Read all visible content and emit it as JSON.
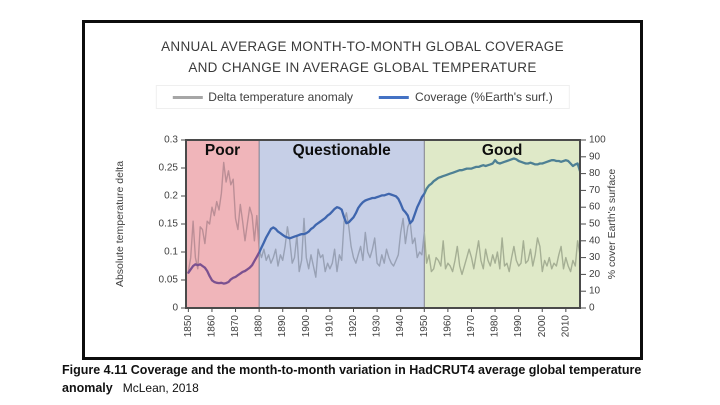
{
  "chart": {
    "title_line1": "ANNUAL AVERAGE MONTH-TO-MONTH GLOBAL COVERAGE",
    "title_line2": "AND CHANGE IN AVERAGE GLOBAL TEMPERATURE",
    "legend": [
      {
        "key": "delta",
        "label": "Delta temperature anomaly",
        "color": "#a6a6a6"
      },
      {
        "key": "coverage",
        "label": "Coverage (%Earth's surf.)",
        "color": "#4472c4"
      }
    ]
  },
  "caption": {
    "line1": "Figure 4.11 Coverage and the month-to-month variation in HadCRUT4 average global temperature",
    "line2_bold": "anomaly",
    "source": "McLean, 2018"
  },
  "chart_data": {
    "type": "line",
    "title": "ANNUAL AVERAGE MONTH-TO-MONTH GLOBAL COVERAGE AND CHANGE IN AVERAGE GLOBAL TEMPERATURE",
    "grid": false,
    "legend_position": "top",
    "x_axis": {
      "min": 1849,
      "max": 2016,
      "ticks": [
        1850,
        1860,
        1870,
        1880,
        1890,
        1900,
        1910,
        1920,
        1930,
        1940,
        1950,
        1960,
        1970,
        1980,
        1990,
        2000,
        2010
      ]
    },
    "left_axis": {
      "label": "Absolute temperature delta",
      "min": 0,
      "max": 0.3,
      "ticks": [
        0,
        0.05,
        0.1,
        0.15,
        0.2,
        0.25,
        0.3
      ]
    },
    "right_axis": {
      "label": "% cover Earth's surface",
      "min": 0,
      "max": 100,
      "ticks": [
        0,
        10,
        20,
        30,
        40,
        50,
        60,
        70,
        80,
        90,
        100
      ]
    },
    "regions": [
      {
        "label": "Poor",
        "from": 1849,
        "to": 1880,
        "bg": "#f0b5ba",
        "tint_coverage": "#7b5190",
        "tint_delta": "#bb8e96"
      },
      {
        "label": "Questionable",
        "from": 1880,
        "to": 1950,
        "bg": "#c6cfe7",
        "tint_coverage": "#3f66ae",
        "tint_delta": "#98a1b5"
      },
      {
        "label": "Good",
        "from": 1950,
        "to": 2016,
        "bg": "#dfe9c8",
        "tint_coverage": "#4e8094",
        "tint_delta": "#a5af94"
      }
    ],
    "x": [
      1850,
      1851,
      1852,
      1853,
      1854,
      1855,
      1856,
      1857,
      1858,
      1859,
      1860,
      1861,
      1862,
      1863,
      1864,
      1865,
      1866,
      1867,
      1868,
      1869,
      1870,
      1871,
      1872,
      1873,
      1874,
      1875,
      1876,
      1877,
      1878,
      1879,
      1880,
      1881,
      1882,
      1883,
      1884,
      1885,
      1886,
      1887,
      1888,
      1889,
      1890,
      1891,
      1892,
      1893,
      1894,
      1895,
      1896,
      1897,
      1898,
      1899,
      1900,
      1901,
      1902,
      1903,
      1904,
      1905,
      1906,
      1907,
      1908,
      1909,
      1910,
      1911,
      1912,
      1913,
      1914,
      1915,
      1916,
      1917,
      1918,
      1919,
      1920,
      1921,
      1922,
      1923,
      1924,
      1925,
      1926,
      1927,
      1928,
      1929,
      1930,
      1931,
      1932,
      1933,
      1934,
      1935,
      1936,
      1937,
      1938,
      1939,
      1940,
      1941,
      1942,
      1943,
      1944,
      1945,
      1946,
      1947,
      1948,
      1949,
      1950,
      1951,
      1952,
      1953,
      1954,
      1955,
      1956,
      1957,
      1958,
      1959,
      1960,
      1961,
      1962,
      1963,
      1964,
      1965,
      1966,
      1967,
      1968,
      1969,
      1970,
      1971,
      1972,
      1973,
      1974,
      1975,
      1976,
      1977,
      1978,
      1979,
      1980,
      1981,
      1982,
      1983,
      1984,
      1985,
      1986,
      1987,
      1988,
      1989,
      1990,
      1991,
      1992,
      1993,
      1994,
      1995,
      1996,
      1997,
      1998,
      1999,
      2000,
      2001,
      2002,
      2003,
      2004,
      2005,
      2006,
      2007,
      2008,
      2009,
      2010,
      2011,
      2012,
      2013,
      2014,
      2015,
      2016
    ],
    "series": [
      {
        "name": "Delta temperature anomaly",
        "axis": "left",
        "base_color": "#a6a6a6",
        "stroke_width": 1.4,
        "values": [
          0.065,
          0.09,
          0.155,
          0.09,
          0.07,
          0.145,
          0.14,
          0.115,
          0.155,
          0.15,
          0.18,
          0.165,
          0.19,
          0.175,
          0.205,
          0.26,
          0.225,
          0.245,
          0.22,
          0.23,
          0.16,
          0.14,
          0.185,
          0.155,
          0.12,
          0.15,
          0.18,
          0.165,
          0.12,
          0.165,
          0.105,
          0.09,
          0.105,
          0.085,
          0.095,
          0.08,
          0.09,
          0.105,
          0.075,
          0.095,
          0.085,
          0.11,
          0.145,
          0.12,
          0.08,
          0.09,
          0.13,
          0.065,
          0.085,
          0.16,
          0.09,
          0.07,
          0.095,
          0.075,
          0.055,
          0.105,
          0.09,
          0.095,
          0.065,
          0.08,
          0.07,
          0.08,
          0.105,
          0.065,
          0.095,
          0.085,
          0.155,
          0.17,
          0.145,
          0.11,
          0.09,
          0.08,
          0.095,
          0.11,
          0.085,
          0.135,
          0.1,
          0.09,
          0.105,
          0.125,
          0.08,
          0.075,
          0.095,
          0.08,
          0.105,
          0.09,
          0.08,
          0.075,
          0.085,
          0.095,
          0.135,
          0.16,
          0.115,
          0.145,
          0.155,
          0.115,
          0.125,
          0.09,
          0.1,
          0.095,
          0.135,
          0.08,
          0.095,
          0.065,
          0.07,
          0.09,
          0.085,
          0.075,
          0.12,
          0.07,
          0.08,
          0.075,
          0.065,
          0.085,
          0.11,
          0.075,
          0.06,
          0.075,
          0.09,
          0.105,
          0.09,
          0.07,
          0.095,
          0.12,
          0.085,
          0.07,
          0.105,
          0.085,
          0.075,
          0.095,
          0.08,
          0.1,
          0.07,
          0.125,
          0.075,
          0.08,
          0.065,
          0.09,
          0.11,
          0.085,
          0.075,
          0.08,
          0.12,
          0.08,
          0.085,
          0.105,
          0.075,
          0.095,
          0.125,
          0.11,
          0.065,
          0.085,
          0.075,
          0.09,
          0.07,
          0.08,
          0.075,
          0.095,
          0.11,
          0.07,
          0.09,
          0.075,
          0.065,
          0.085,
          0.075,
          0.12,
          0.095
        ]
      },
      {
        "name": "Coverage (%Earth's surf.)",
        "axis": "right",
        "base_color": "#4472c4",
        "stroke_width": 2.3,
        "values": [
          21,
          23,
          25,
          26,
          25.5,
          26,
          25,
          24,
          22,
          19,
          16.5,
          15.5,
          15,
          14.8,
          15,
          14.5,
          14.8,
          15.5,
          17,
          18,
          18.5,
          19.5,
          20.5,
          21.5,
          22,
          23,
          24,
          25.5,
          28,
          30.5,
          33,
          36,
          39,
          42,
          44.5,
          47,
          48,
          47,
          45.5,
          44.5,
          43.5,
          42.5,
          42,
          41.5,
          42,
          42.5,
          43,
          43.5,
          44,
          44,
          44.5,
          45.5,
          47,
          48,
          49.5,
          50.5,
          51.5,
          52.5,
          53.5,
          55,
          56,
          57.5,
          59,
          60,
          59.5,
          58.5,
          54,
          50.5,
          51,
          52.5,
          54,
          56.5,
          59.5,
          61.5,
          63,
          64,
          64.5,
          65,
          65.5,
          65.5,
          66,
          66.5,
          67,
          67,
          67.5,
          68,
          67.5,
          67,
          66.5,
          65,
          62,
          58.5,
          57,
          55,
          50.5,
          52,
          56,
          60,
          63,
          66,
          68,
          71,
          73,
          74,
          75.5,
          76.5,
          77.5,
          78,
          78.5,
          79,
          79.5,
          80,
          80.5,
          81,
          81.5,
          82,
          82,
          82.5,
          83,
          83,
          83,
          83.5,
          84,
          84,
          84.5,
          85,
          84.5,
          85,
          85.5,
          86,
          88,
          86.5,
          86,
          86.5,
          87,
          87.5,
          88,
          88.5,
          89,
          88.5,
          87.5,
          87,
          86.5,
          86,
          86,
          86.5,
          86,
          85.5,
          85.5,
          86,
          86,
          86.5,
          87,
          87.5,
          88,
          88,
          87.5,
          87.5,
          87,
          87.5,
          88,
          87.5,
          86,
          84.5,
          85.5,
          86,
          81.5
        ]
      }
    ]
  }
}
